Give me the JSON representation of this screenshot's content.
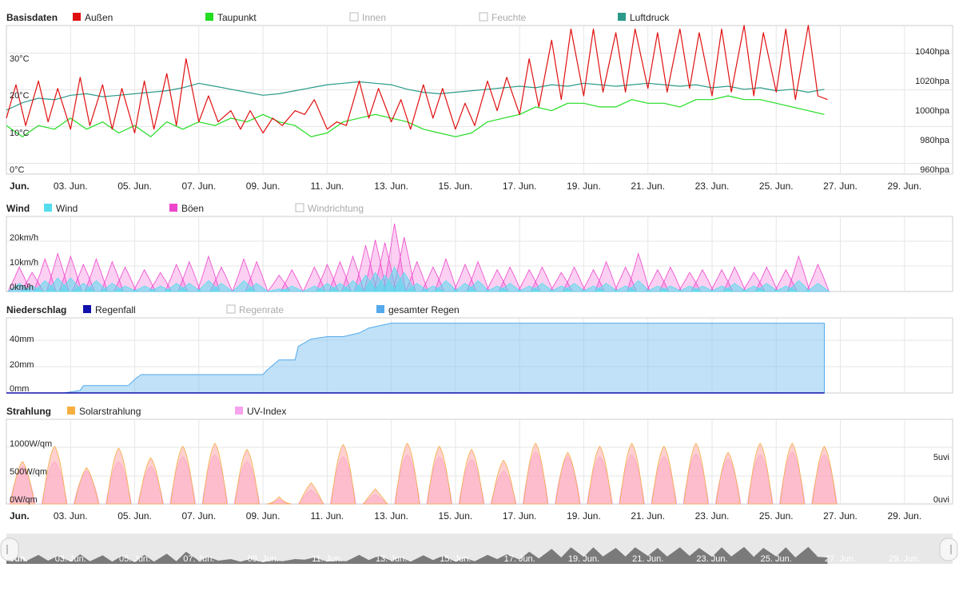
{
  "x_axis": {
    "labels": [
      {
        "text": "Jun.",
        "day": 1,
        "bold": true
      },
      {
        "text": "03. Jun.",
        "day": 3
      },
      {
        "text": "05. Jun.",
        "day": 5
      },
      {
        "text": "07. Jun.",
        "day": 7
      },
      {
        "text": "09. Jun.",
        "day": 9
      },
      {
        "text": "11. Jun.",
        "day": 11
      },
      {
        "text": "13. Jun.",
        "day": 13
      },
      {
        "text": "15. Jun.",
        "day": 15
      },
      {
        "text": "17. Jun.",
        "day": 17
      },
      {
        "text": "19. Jun.",
        "day": 19
      },
      {
        "text": "21. Jun.",
        "day": 21
      },
      {
        "text": "23. Jun.",
        "day": 23
      },
      {
        "text": "25. Jun.",
        "day": 25
      },
      {
        "text": "27. Jun.",
        "day": 27
      },
      {
        "text": "29. Jun.",
        "day": 29
      }
    ]
  },
  "panels": {
    "basis": {
      "title": "Basisdaten",
      "legend": [
        {
          "name": "Außen",
          "color": "#e01010",
          "enabled": true
        },
        {
          "name": "Taupunkt",
          "color": "#22dd22",
          "enabled": true
        },
        {
          "name": "Innen",
          "color": "#cccccc",
          "enabled": false
        },
        {
          "name": "Feuchte",
          "color": "#cccccc",
          "enabled": false
        },
        {
          "name": "Luftdruck",
          "color": "#2a9a8a",
          "enabled": true
        }
      ],
      "y_left_ticks": [
        "0°C",
        "10°C",
        "20°C",
        "30°C"
      ],
      "y_right_ticks": [
        "960hpa",
        "980hpa",
        "1000hpa",
        "1020hpa",
        "1040hpa"
      ]
    },
    "wind": {
      "title": "Wind",
      "legend": [
        {
          "name": "Wind",
          "color": "#55ddee",
          "enabled": true
        },
        {
          "name": "Böen",
          "color": "#ee44cc",
          "enabled": true
        },
        {
          "name": "Windrichtung",
          "color": "#cccccc",
          "enabled": false
        }
      ],
      "y_left_ticks": [
        "0km/h",
        "10km/h",
        "20km/h"
      ]
    },
    "rain": {
      "title": "Niederschlag",
      "legend": [
        {
          "name": "Regenfall",
          "color": "#1010aa",
          "enabled": true
        },
        {
          "name": "Regenrate",
          "color": "#cccccc",
          "enabled": false
        },
        {
          "name": "gesamter Regen",
          "color": "#55aaee",
          "enabled": true
        }
      ],
      "y_left_ticks": [
        "0mm",
        "20mm",
        "40mm"
      ]
    },
    "solar": {
      "title": "Strahlung",
      "legend": [
        {
          "name": "Solarstrahlung",
          "color": "#f5b041",
          "enabled": true
        },
        {
          "name": "UV-Index",
          "color": "#f7a4f0",
          "enabled": true
        }
      ],
      "y_left_ticks": [
        "0W/qm",
        "500W/qm",
        "1000W/qm"
      ],
      "y_right_ticks": [
        "0uvi",
        "5uvi"
      ]
    }
  },
  "chart_data": [
    {
      "type": "line",
      "title": "Basisdaten",
      "x_unit": "day of June",
      "xlim": [
        1,
        30.5
      ],
      "ylim_left": [
        0,
        40
      ],
      "ylim_right": [
        960,
        1060
      ],
      "series": [
        {
          "name": "Außen",
          "axis": "left",
          "color": "#e01010",
          "x": [
            1,
            1.3,
            1.6,
            2,
            2.3,
            2.6,
            3,
            3.3,
            3.6,
            4,
            4.3,
            4.6,
            5,
            5.3,
            5.6,
            6,
            6.3,
            6.6,
            7,
            7.3,
            7.6,
            8,
            8.3,
            8.6,
            9,
            9.3,
            9.6,
            10,
            10.3,
            10.6,
            11,
            11.3,
            11.6,
            12,
            12.3,
            12.6,
            13,
            13.3,
            13.6,
            14,
            14.3,
            14.6,
            15,
            15.3,
            15.6,
            16,
            16.3,
            16.6,
            17,
            17.3,
            17.6,
            18,
            18.3,
            18.6,
            19,
            19.3,
            19.6,
            20,
            20.3,
            20.6,
            21,
            21.3,
            21.6,
            22,
            22.3,
            22.6,
            23,
            23.3,
            23.6,
            24,
            24.3,
            24.6,
            25,
            25.3,
            25.6,
            26,
            26.3,
            26.6
          ],
          "y": [
            14,
            23,
            12,
            24,
            13,
            22,
            11,
            25,
            12,
            23,
            11,
            22,
            10,
            24,
            11,
            26,
            12,
            30,
            13,
            20,
            13,
            16,
            11,
            16,
            10,
            14,
            12,
            16,
            15,
            19,
            11,
            13,
            12,
            24,
            14,
            22,
            13,
            19,
            11,
            23,
            14,
            22,
            11,
            18,
            12,
            24,
            16,
            25,
            15,
            30,
            17,
            35,
            19,
            38,
            20,
            38,
            21,
            37,
            21,
            38,
            22,
            37,
            21,
            38,
            22,
            37,
            20,
            38,
            21,
            39,
            20,
            37,
            21,
            38,
            19,
            39,
            20,
            19
          ]
        },
        {
          "name": "Taupunkt",
          "axis": "left",
          "color": "#22dd22",
          "x": [
            1,
            1.5,
            2,
            2.5,
            3,
            3.5,
            4,
            4.5,
            5,
            5.5,
            6,
            6.5,
            7,
            7.5,
            8,
            8.5,
            9,
            9.5,
            10,
            10.5,
            11,
            11.5,
            12,
            12.5,
            13,
            13.5,
            14,
            14.5,
            15,
            15.5,
            16,
            16.5,
            17,
            17.5,
            18,
            18.5,
            19,
            19.5,
            20,
            20.5,
            21,
            21.5,
            22,
            22.5,
            23,
            23.5,
            24,
            24.5,
            25,
            25.5,
            26,
            26.5
          ],
          "y": [
            12,
            9,
            12,
            11,
            14,
            11,
            13,
            10,
            12,
            9,
            13,
            11,
            13,
            12,
            14,
            13,
            15,
            13,
            12,
            9,
            10,
            13,
            14,
            15,
            14,
            13,
            11,
            10,
            9,
            10,
            13,
            14,
            15,
            17,
            16,
            18,
            18,
            17,
            17,
            19,
            18,
            18,
            17,
            19,
            19,
            20,
            19,
            19,
            18,
            17,
            16,
            15
          ]
        },
        {
          "name": "Luftdruck",
          "axis": "right",
          "color": "#2a9a8a",
          "x": [
            1,
            1.5,
            2,
            2.5,
            3,
            3.5,
            4,
            4.5,
            5,
            5.5,
            6,
            6.5,
            7,
            7.5,
            8,
            8.5,
            9,
            9.5,
            10,
            10.5,
            11,
            11.5,
            12,
            12.5,
            13,
            13.5,
            14,
            14.5,
            15,
            15.5,
            16,
            16.5,
            17,
            17.5,
            18,
            18.5,
            19,
            19.5,
            20,
            20.5,
            21,
            21.5,
            22,
            22.5,
            23,
            23.5,
            24,
            24.5,
            25,
            25.5,
            26,
            26.5
          ],
          "y": [
            1000,
            1005,
            1008,
            1007,
            1010,
            1011,
            1009,
            1010,
            1011,
            1012,
            1013,
            1015,
            1018,
            1016,
            1014,
            1012,
            1010,
            1011,
            1013,
            1015,
            1017,
            1018,
            1019,
            1018,
            1017,
            1014,
            1012,
            1011,
            1012,
            1013,
            1014,
            1015,
            1016,
            1015,
            1017,
            1016,
            1018,
            1017,
            1016,
            1017,
            1018,
            1017,
            1016,
            1017,
            1015,
            1016,
            1014,
            1015,
            1013,
            1014,
            1012,
            1014
          ]
        }
      ]
    },
    {
      "type": "area",
      "title": "Wind",
      "x_unit": "day of June",
      "xlim": [
        1,
        30.5
      ],
      "ylim": [
        0,
        25
      ],
      "series": [
        {
          "name": "Böen",
          "color": "#ee44cc",
          "x": [
            1.4,
            1.8,
            2.2,
            2.6,
            3,
            3.4,
            3.8,
            4.3,
            4.7,
            5.3,
            5.8,
            6.3,
            6.7,
            7.3,
            7.7,
            8.4,
            8.8,
            9.5,
            9.9,
            10.6,
            11,
            11.4,
            11.8,
            12.2,
            12.5,
            12.8,
            13.1,
            13.4,
            13.8,
            14.3,
            14.7,
            15.3,
            15.7,
            16.3,
            16.7,
            17.3,
            17.7,
            18.3,
            18.7,
            19.3,
            19.7,
            20.3,
            20.7,
            21.3,
            21.7,
            22.3,
            22.7,
            23.3,
            23.7,
            24.3,
            24.7,
            25.3,
            25.7,
            26.3
          ],
          "y": [
            9,
            7,
            12,
            14,
            13,
            10,
            12,
            11,
            9,
            8,
            7,
            10,
            11,
            13,
            9,
            12,
            11,
            6,
            8,
            9,
            10,
            11,
            13,
            17,
            19,
            18,
            25,
            20,
            11,
            9,
            12,
            10,
            11,
            8,
            9,
            8,
            9,
            7,
            9,
            8,
            11,
            9,
            14,
            8,
            9,
            7,
            8,
            8,
            9,
            7,
            9,
            8,
            13,
            10
          ]
        },
        {
          "name": "Wind",
          "color": "#55ddee",
          "x": [
            1.4,
            1.8,
            2.2,
            2.6,
            3,
            3.4,
            3.8,
            4.3,
            4.7,
            5.3,
            5.8,
            6.3,
            6.7,
            7.3,
            7.7,
            8.4,
            8.8,
            9.5,
            9.9,
            10.6,
            11,
            11.4,
            11.8,
            12.2,
            12.5,
            12.8,
            13.1,
            13.4,
            13.8,
            14.3,
            14.7,
            15.3,
            15.7,
            16.3,
            16.7,
            17.3,
            17.7,
            18.3,
            18.7,
            19.3,
            19.7,
            20.3,
            20.7,
            21.3,
            21.7,
            22.3,
            22.7,
            23.3,
            23.7,
            24.3,
            24.7,
            25.3,
            25.7,
            26.3
          ],
          "y": [
            3,
            2,
            4,
            5,
            5,
            3,
            4,
            3,
            2,
            2,
            2,
            3,
            3,
            4,
            3,
            4,
            3,
            1,
            2,
            2,
            3,
            3,
            4,
            6,
            7,
            6,
            9,
            7,
            3,
            2,
            4,
            3,
            4,
            2,
            3,
            2,
            3,
            2,
            3,
            2,
            3,
            2,
            4,
            2,
            2,
            2,
            2,
            2,
            3,
            2,
            3,
            2,
            4,
            3
          ]
        }
      ]
    },
    {
      "type": "area",
      "title": "Niederschlag",
      "x_unit": "day of June",
      "xlim": [
        1,
        30.5
      ],
      "ylim": [
        0,
        60
      ],
      "series": [
        {
          "name": "gesamter Regen",
          "color": "#55aaee",
          "x": [
            1,
            2.8,
            3.3,
            3.4,
            4.8,
            5,
            5.2,
            9,
            9.1,
            9.5,
            10,
            10.1,
            10.5,
            11,
            11.5,
            12,
            12.3,
            13,
            17,
            26.5
          ],
          "y": [
            0,
            0,
            2,
            6,
            6,
            11,
            15,
            15,
            18,
            27,
            27,
            38,
            44,
            46,
            46,
            49,
            53,
            57,
            57,
            57
          ]
        },
        {
          "name": "Regenfall",
          "color": "#1010aa",
          "x": [
            1,
            26.5
          ],
          "y": [
            0,
            0
          ]
        }
      ]
    },
    {
      "type": "area",
      "title": "Strahlung",
      "x_unit": "day of June",
      "xlim": [
        1,
        30.5
      ],
      "ylim_left": [
        0,
        1200
      ],
      "ylim_right": [
        0,
        10
      ],
      "series": [
        {
          "name": "Solarstrahlung",
          "axis": "left",
          "color": "#f5b041",
          "x": [
            1.5,
            2.5,
            3.5,
            4.5,
            5.5,
            6.5,
            7.5,
            8.5,
            9.5,
            10.5,
            11.5,
            12.5,
            13.5,
            14.5,
            15.5,
            16.5,
            17.5,
            18.5,
            19.5,
            20.5,
            21.5,
            22.5,
            23.5,
            24.5,
            25.5,
            26.5
          ],
          "y": [
            700,
            950,
            600,
            920,
            760,
            950,
            1000,
            900,
            120,
            350,
            980,
            250,
            1000,
            950,
            900,
            720,
            1000,
            850,
            950,
            1000,
            950,
            1000,
            850,
            1000,
            1000,
            950
          ]
        },
        {
          "name": "UV-Index",
          "axis": "right",
          "color": "#f7a4f0",
          "x": [
            1.5,
            2.5,
            3.5,
            4.5,
            5.5,
            6.5,
            7.5,
            8.5,
            9.5,
            10.5,
            11.5,
            12.5,
            13.5,
            14.5,
            15.5,
            16.5,
            17.5,
            18.5,
            19.5,
            20.5,
            21.5,
            22.5,
            23.5,
            24.5,
            25.5,
            26.5
          ],
          "y": [
            4,
            4.5,
            3.5,
            4.5,
            4,
            5,
            5.2,
            4.5,
            0.5,
            1.5,
            5,
            1,
            5.2,
            5,
            4.7,
            3.5,
            5.5,
            5,
            5,
            5.2,
            5,
            5.3,
            4.8,
            5.2,
            5.5,
            5.2
          ]
        }
      ]
    }
  ]
}
